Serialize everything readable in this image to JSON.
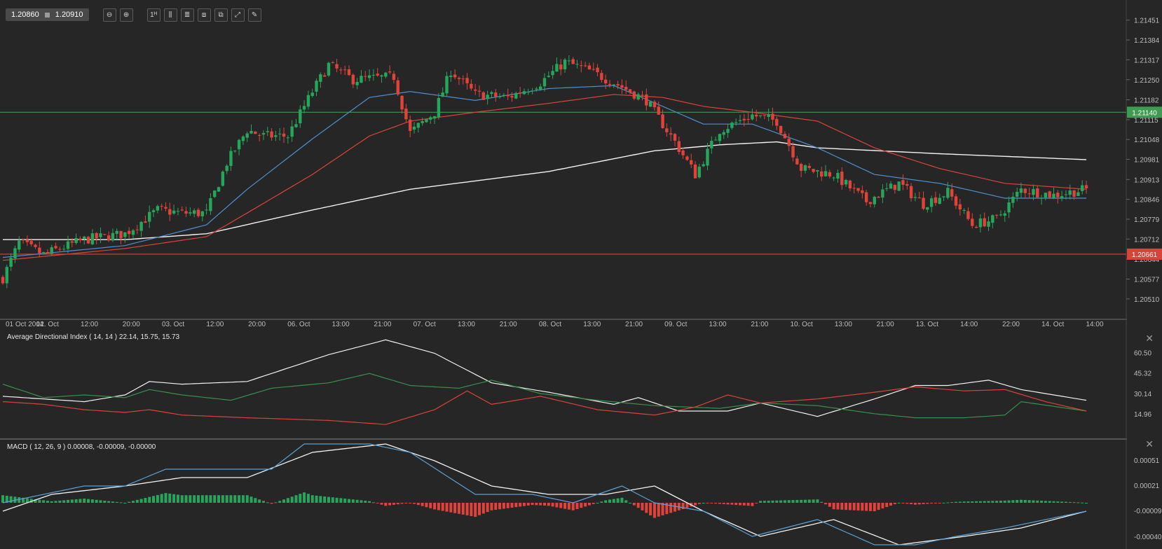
{
  "toolbar": {
    "bid": "1.20860",
    "ask": "1.20910",
    "buttons": [
      {
        "name": "zoom-out-icon",
        "glyph": "⊖"
      },
      {
        "name": "zoom-in-icon",
        "glyph": "⊕"
      },
      {
        "name": "timeframe-icon",
        "glyph": "1ᴴ"
      },
      {
        "name": "candle-type-icon",
        "glyph": "⫼"
      },
      {
        "name": "indicators-icon",
        "glyph": "≣"
      },
      {
        "name": "chart-settings-icon",
        "glyph": "⧈"
      },
      {
        "name": "templates-icon",
        "glyph": "⧉"
      },
      {
        "name": "fullscreen-icon",
        "glyph": "⤢"
      },
      {
        "name": "drawing-tool-icon",
        "glyph": "✎"
      }
    ]
  },
  "colors": {
    "background": "#262626",
    "grid": "#3a3a3a",
    "up": "#26a65b",
    "down": "#e0433b",
    "ema_fast": "#4f8fcf",
    "ema_slow": "#d9443a",
    "sma_long": "#f2f2f2",
    "resistance": "#3f9a52",
    "support": "#d9443a"
  },
  "chart_data": [
    {
      "type": "candlestick",
      "symbol_pair": "EUR/USD",
      "y_ticks": [
        "1.21451",
        "1.21384",
        "1.21317",
        "1.21250",
        "1.21182",
        "1.21115",
        "1.21048",
        "1.20981",
        "1.20913",
        "1.20846",
        "1.20779",
        "1.20712",
        "1.20644",
        "1.20577",
        "1.20510"
      ],
      "ylim": [
        1.2046,
        1.215
      ],
      "x_ticks": [
        "01 Oct 2014",
        "02. Oct",
        "12:00",
        "20:00",
        "03. Oct",
        "12:00",
        "20:00",
        "06. Oct",
        "13:00",
        "21:00",
        "07. Oct",
        "13:00",
        "21:00",
        "08. Oct",
        "13:00",
        "21:00",
        "09. Oct",
        "13:00",
        "21:00",
        "10. Oct",
        "13:00",
        "21:00",
        "13. Oct",
        "14:00",
        "22:00",
        "14. Oct",
        "14:00"
      ],
      "horizontal_lines": [
        {
          "label": "1.21140",
          "value": 1.2114,
          "color": "#3f9a52"
        },
        {
          "label": "1.20661",
          "value": 1.20661,
          "color": "#d9443a"
        }
      ],
      "close_path": [
        [
          0,
          1.2058
        ],
        [
          4,
          1.207
        ],
        [
          10,
          1.2066
        ],
        [
          20,
          1.2071
        ],
        [
          30,
          1.2073
        ],
        [
          38,
          1.2081
        ],
        [
          44,
          1.208
        ],
        [
          50,
          1.208
        ],
        [
          55,
          1.2097
        ],
        [
          60,
          1.2108
        ],
        [
          64,
          1.2106
        ],
        [
          70,
          1.2106
        ],
        [
          76,
          1.2121
        ],
        [
          80,
          1.213
        ],
        [
          86,
          1.2125
        ],
        [
          96,
          1.2126
        ],
        [
          100,
          1.2107
        ],
        [
          106,
          1.2114
        ],
        [
          110,
          1.2128
        ],
        [
          116,
          1.212
        ],
        [
          124,
          1.2119
        ],
        [
          132,
          1.2124
        ],
        [
          138,
          1.2131
        ],
        [
          144,
          1.2128
        ],
        [
          150,
          1.2124
        ],
        [
          158,
          1.2118
        ],
        [
          165,
          1.2104
        ],
        [
          170,
          1.2093
        ],
        [
          176,
          1.2108
        ],
        [
          184,
          1.2113
        ],
        [
          190,
          1.2111
        ],
        [
          196,
          1.2095
        ],
        [
          204,
          1.2093
        ],
        [
          212,
          1.2084
        ],
        [
          220,
          1.209
        ],
        [
          226,
          1.2083
        ],
        [
          232,
          1.2087
        ],
        [
          238,
          1.2076
        ],
        [
          244,
          1.2078
        ],
        [
          250,
          1.2088
        ],
        [
          258,
          1.2086
        ],
        [
          266,
          1.2088
        ]
      ],
      "ema_fast": [
        [
          0,
          1.2065
        ],
        [
          30,
          1.2069
        ],
        [
          50,
          1.2076
        ],
        [
          60,
          1.2088
        ],
        [
          76,
          1.2105
        ],
        [
          90,
          1.2119
        ],
        [
          100,
          1.2121
        ],
        [
          116,
          1.2118
        ],
        [
          134,
          1.2122
        ],
        [
          150,
          1.2123
        ],
        [
          162,
          1.2116
        ],
        [
          172,
          1.211
        ],
        [
          184,
          1.211
        ],
        [
          200,
          1.2102
        ],
        [
          214,
          1.2093
        ],
        [
          230,
          1.209
        ],
        [
          246,
          1.2085
        ],
        [
          266,
          1.2085
        ]
      ],
      "ema_slow": [
        [
          0,
          1.2064
        ],
        [
          30,
          1.2068
        ],
        [
          50,
          1.2072
        ],
        [
          60,
          1.208
        ],
        [
          76,
          1.2093
        ],
        [
          90,
          1.2106
        ],
        [
          100,
          1.2111
        ],
        [
          116,
          1.2114
        ],
        [
          134,
          1.2117
        ],
        [
          150,
          1.212
        ],
        [
          162,
          1.2119
        ],
        [
          172,
          1.2116
        ],
        [
          184,
          1.2114
        ],
        [
          200,
          1.2111
        ],
        [
          214,
          1.2102
        ],
        [
          230,
          1.2095
        ],
        [
          246,
          1.209
        ],
        [
          266,
          1.2088
        ]
      ],
      "sma_long": [
        [
          0,
          1.2071
        ],
        [
          30,
          1.2071
        ],
        [
          50,
          1.2073
        ],
        [
          76,
          1.2081
        ],
        [
          100,
          1.2088
        ],
        [
          134,
          1.2094
        ],
        [
          160,
          1.2101
        ],
        [
          176,
          1.2103
        ],
        [
          190,
          1.2104
        ],
        [
          200,
          1.2102
        ],
        [
          230,
          1.21
        ],
        [
          266,
          1.2098
        ]
      ]
    },
    {
      "type": "line",
      "title": "Average Directional Index ( 14, 14 ) 22.14, 15.75, 15.73",
      "y_ticks": [
        "60.50",
        "45.32",
        "30.14",
        "14.96"
      ],
      "ylim": [
        5,
        78
      ],
      "series": [
        {
          "key": "adx",
          "color": "#f2f2f2",
          "points": [
            [
              0,
              28
            ],
            [
              10,
              26
            ],
            [
              20,
              24
            ],
            [
              30,
              29
            ],
            [
              36,
              39
            ],
            [
              44,
              37
            ],
            [
              60,
              39
            ],
            [
              80,
              59
            ],
            [
              94,
              70
            ],
            [
              106,
              60
            ],
            [
              120,
              38
            ],
            [
              134,
              31
            ],
            [
              150,
              22
            ],
            [
              156,
              27
            ],
            [
              166,
              17
            ],
            [
              178,
              17
            ],
            [
              186,
              23
            ],
            [
              200,
              13
            ],
            [
              214,
              26
            ],
            [
              224,
              36
            ],
            [
              232,
              36
            ],
            [
              242,
              40
            ],
            [
              250,
              33
            ],
            [
              266,
              25
            ]
          ]
        },
        {
          "key": "di_plus",
          "color": "#3a8f4c",
          "points": [
            [
              0,
              37
            ],
            [
              10,
              27
            ],
            [
              20,
              29
            ],
            [
              30,
              27
            ],
            [
              36,
              33
            ],
            [
              44,
              29
            ],
            [
              56,
              25
            ],
            [
              66,
              34
            ],
            [
              80,
              38
            ],
            [
              90,
              45
            ],
            [
              100,
              36
            ],
            [
              112,
              34
            ],
            [
              120,
              40
            ],
            [
              132,
              30
            ],
            [
              146,
              25
            ],
            [
              160,
              21
            ],
            [
              176,
              19
            ],
            [
              186,
              23
            ],
            [
              200,
              21
            ],
            [
              214,
              15
            ],
            [
              224,
              12
            ],
            [
              236,
              12
            ],
            [
              246,
              14
            ],
            [
              250,
              24
            ],
            [
              266,
              17
            ]
          ]
        },
        {
          "key": "di_minus",
          "color": "#d9443a",
          "points": [
            [
              0,
              24
            ],
            [
              10,
              22
            ],
            [
              20,
              18
            ],
            [
              30,
              16
            ],
            [
              36,
              18
            ],
            [
              44,
              14
            ],
            [
              60,
              12
            ],
            [
              80,
              10
            ],
            [
              94,
              7
            ],
            [
              106,
              18
            ],
            [
              114,
              32
            ],
            [
              120,
              22
            ],
            [
              132,
              28
            ],
            [
              146,
              18
            ],
            [
              160,
              14
            ],
            [
              170,
              20
            ],
            [
              178,
              29
            ],
            [
              186,
              23
            ],
            [
              200,
              26
            ],
            [
              214,
              31
            ],
            [
              224,
              35
            ],
            [
              236,
              32
            ],
            [
              246,
              33
            ],
            [
              256,
              24
            ],
            [
              266,
              17
            ]
          ]
        }
      ]
    },
    {
      "type": "histogram",
      "title": "MACD ( 12, 26, 9 ) 0.00008, -0.00009, -0.00000",
      "y_ticks": [
        "0.00051",
        "0.00021",
        "-0.00009",
        "-0.00040"
      ],
      "ylim": [
        -0.00055,
        0.00075
      ],
      "macd": [
        [
          0,
          0.0
        ],
        [
          10,
          0.0001
        ],
        [
          20,
          0.0002
        ],
        [
          30,
          0.0002
        ],
        [
          40,
          0.0004
        ],
        [
          50,
          0.0004
        ],
        [
          66,
          0.0004
        ],
        [
          74,
          0.0007
        ],
        [
          90,
          0.0007
        ],
        [
          100,
          0.0006
        ],
        [
          116,
          0.0001
        ],
        [
          130,
          0.0001
        ],
        [
          140,
          0.0
        ],
        [
          152,
          0.0002
        ],
        [
          160,
          0.0
        ],
        [
          172,
          -0.0001
        ],
        [
          184,
          -0.0004
        ],
        [
          200,
          -0.0002
        ],
        [
          214,
          -0.0005
        ],
        [
          224,
          -0.0005
        ],
        [
          234,
          -0.0004
        ],
        [
          246,
          -0.0003
        ],
        [
          266,
          -0.0001
        ]
      ],
      "signal": [
        [
          0,
          -0.0001
        ],
        [
          12,
          0.0001
        ],
        [
          30,
          0.0002
        ],
        [
          44,
          0.0003
        ],
        [
          60,
          0.0003
        ],
        [
          76,
          0.0006
        ],
        [
          94,
          0.0007
        ],
        [
          106,
          0.0005
        ],
        [
          120,
          0.0002
        ],
        [
          134,
          0.0001
        ],
        [
          148,
          0.0001
        ],
        [
          160,
          0.0002
        ],
        [
          172,
          -0.0001
        ],
        [
          186,
          -0.0004
        ],
        [
          204,
          -0.0002
        ],
        [
          220,
          -0.0005
        ],
        [
          236,
          -0.0004
        ],
        [
          250,
          -0.0003
        ],
        [
          266,
          -0.0001
        ]
      ]
    }
  ]
}
